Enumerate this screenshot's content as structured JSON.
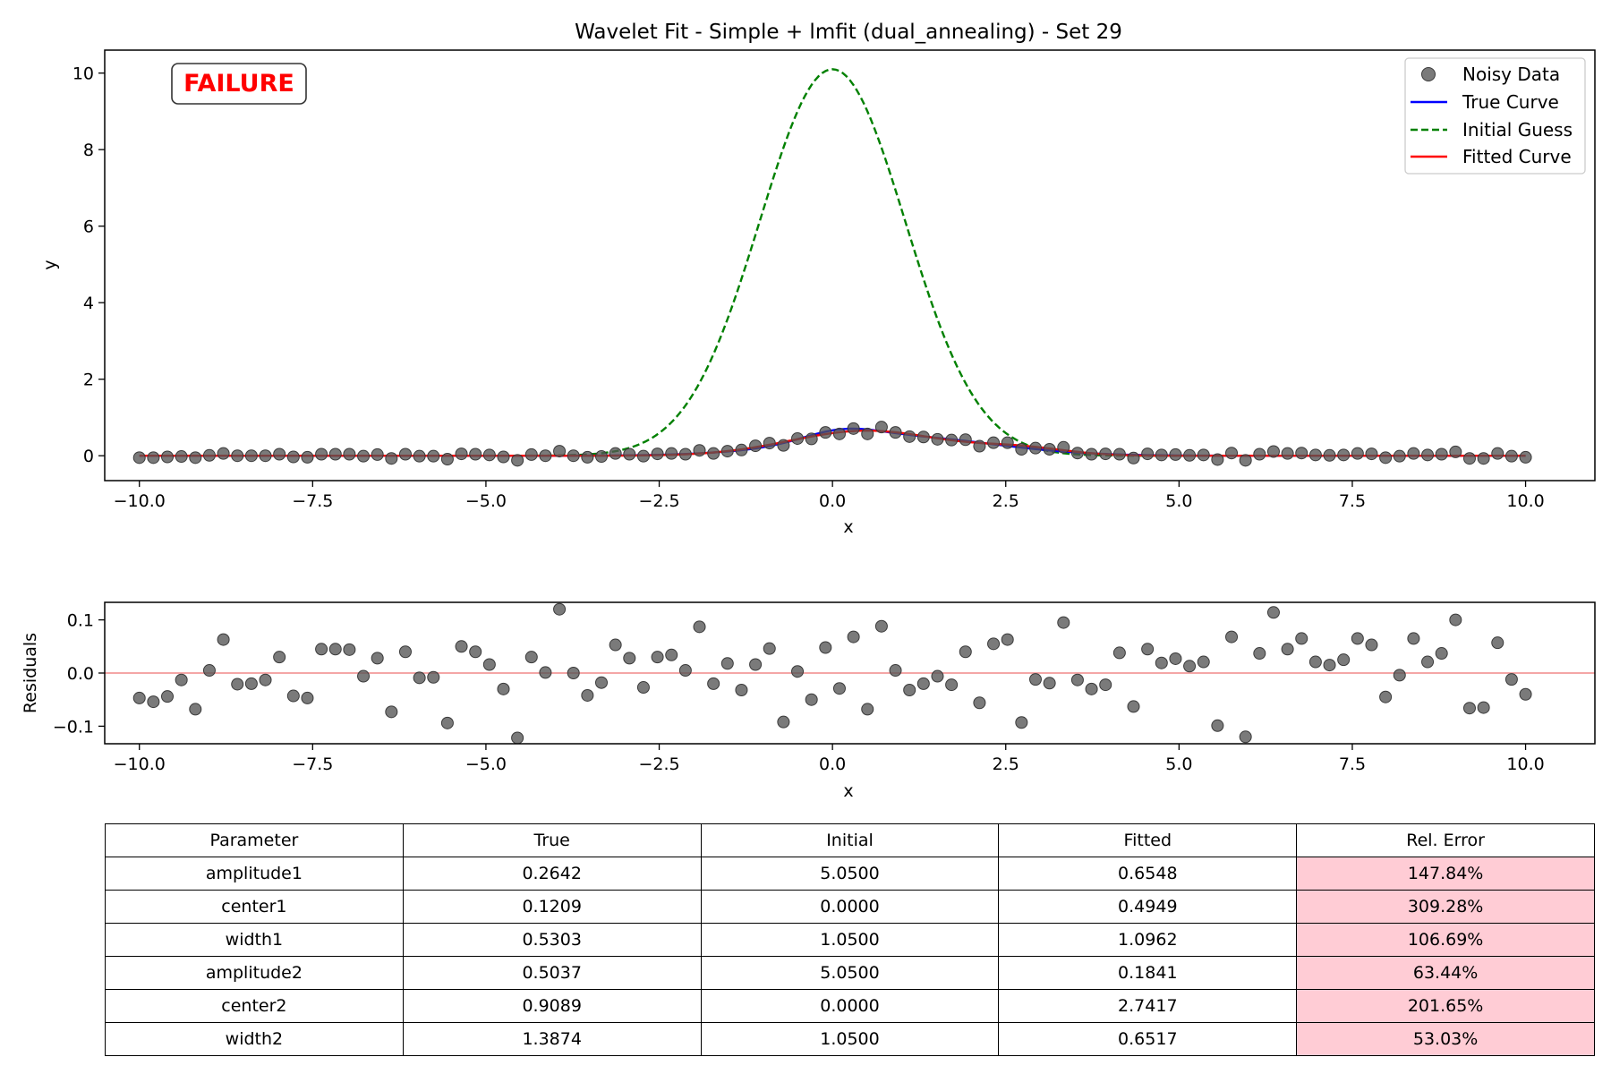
{
  "chart_data": [
    {
      "type": "line",
      "title": "Wavelet Fit - Simple + lmfit (dual_annealing) - Set 29",
      "xlabel": "x",
      "ylabel": "y",
      "xlim": [
        -10.5,
        11.0
      ],
      "ylim": [
        -0.65,
        10.6
      ],
      "xticks": [
        -10.0,
        -7.5,
        -5.0,
        -2.5,
        0.0,
        2.5,
        5.0,
        7.5,
        10.0
      ],
      "xtick_labels": [
        "−10.0",
        "−7.5",
        "−5.0",
        "−2.5",
        "0.0",
        "2.5",
        "5.0",
        "7.5",
        "10.0"
      ],
      "yticks": [
        0,
        2,
        4,
        6,
        8,
        10
      ],
      "ytick_labels": [
        "0",
        "2",
        "4",
        "6",
        "8",
        "10"
      ],
      "grid": false,
      "legend_position": "top-right",
      "annotation": {
        "text": "FAILURE",
        "color": "#ff0000"
      },
      "series": [
        {
          "name": "Noisy Data",
          "kind": "scatter",
          "color": "#555555",
          "x_range": [
            -10,
            10
          ],
          "n_points": 100,
          "y": [
            -0.05,
            -0.05,
            -0.03,
            -0.02,
            -0.05,
            0.01,
            0.06,
            0.0,
            0.0,
            0.0,
            0.04,
            -0.03,
            -0.04,
            0.04,
            0.04,
            0.04,
            -0.01,
            0.03,
            -0.07,
            0.04,
            -0.01,
            -0.01,
            -0.09,
            0.05,
            0.04,
            0.02,
            -0.03,
            -0.12,
            0.03,
            0.0,
            0.12,
            0.0,
            -0.04,
            -0.02,
            0.06,
            0.04,
            -0.01,
            0.05,
            0.06,
            0.04,
            0.14,
            0.06,
            0.12,
            0.15,
            0.26,
            0.33,
            0.27,
            0.45,
            0.44,
            0.61,
            0.57,
            0.71,
            0.57,
            0.75,
            0.61,
            0.5,
            0.49,
            0.43,
            0.41,
            0.42,
            0.25,
            0.34,
            0.34,
            0.17,
            0.2,
            0.17,
            0.22,
            0.07,
            0.04,
            0.05,
            0.04,
            -0.06,
            0.05,
            0.02,
            0.03,
            0.01,
            0.02,
            -0.1,
            0.07,
            -0.12,
            0.04,
            0.11,
            0.06,
            0.07,
            0.02,
            0.01,
            0.02,
            0.06,
            0.05,
            -0.05,
            -0.01,
            0.06,
            0.02,
            0.04,
            0.1,
            -0.07,
            -0.07,
            0.06,
            -0.01,
            -0.04
          ]
        },
        {
          "name": "True Curve",
          "kind": "line",
          "color": "#0000ff",
          "style": "solid",
          "params": {
            "amplitude1": 0.2642,
            "center1": 0.1209,
            "width1": 0.5303,
            "amplitude2": 0.5037,
            "center2": 0.9089,
            "width2": 1.3874
          }
        },
        {
          "name": "Initial Guess",
          "kind": "line",
          "color": "#008000",
          "style": "dashed",
          "params": {
            "amplitude1": 5.05,
            "center1": 0.0,
            "width1": 1.05,
            "amplitude2": 5.05,
            "center2": 0.0,
            "width2": 1.05
          }
        },
        {
          "name": "Fitted Curve",
          "kind": "line",
          "color": "#ff0000",
          "style": "solid",
          "params": {
            "amplitude1": 0.6548,
            "center1": 0.4949,
            "width1": 1.0962,
            "amplitude2": 0.1841,
            "center2": 2.7417,
            "width2": 0.6517
          }
        }
      ]
    },
    {
      "type": "scatter",
      "title": "",
      "xlabel": "x",
      "ylabel": "Residuals",
      "xlim": [
        -10.5,
        11.0
      ],
      "ylim": [
        -0.133,
        0.133
      ],
      "xticks": [
        -10.0,
        -7.5,
        -5.0,
        -2.5,
        0.0,
        2.5,
        5.0,
        7.5,
        10.0
      ],
      "xtick_labels": [
        "−10.0",
        "−7.5",
        "−5.0",
        "−2.5",
        "0.0",
        "2.5",
        "5.0",
        "7.5",
        "10.0"
      ],
      "yticks": [
        -0.1,
        0.0,
        0.1
      ],
      "ytick_labels": [
        "−0.1",
        "0.0",
        "0.1"
      ],
      "zero_line_color": "#f4a6a6",
      "series": [
        {
          "name": "Residuals",
          "color": "#555555",
          "x_range": [
            -10,
            10
          ],
          "n_points": 100,
          "y": [
            -0.047,
            -0.054,
            -0.044,
            -0.013,
            -0.068,
            0.005,
            0.063,
            -0.021,
            -0.02,
            -0.013,
            0.03,
            -0.043,
            -0.047,
            0.045,
            0.045,
            0.044,
            -0.006,
            0.028,
            -0.073,
            0.04,
            -0.009,
            -0.008,
            -0.094,
            0.05,
            0.04,
            0.016,
            -0.03,
            -0.122,
            0.03,
            0.001,
            0.12,
            0.0,
            -0.042,
            -0.018,
            0.053,
            0.028,
            -0.027,
            0.03,
            0.034,
            0.005,
            0.087,
            -0.02,
            0.018,
            -0.032,
            0.016,
            0.046,
            -0.092,
            0.003,
            -0.05,
            0.048,
            -0.029,
            0.068,
            -0.068,
            0.088,
            0.005,
            -0.032,
            -0.02,
            -0.006,
            -0.022,
            0.04,
            -0.056,
            0.055,
            0.063,
            -0.093,
            -0.012,
            -0.019,
            0.095,
            -0.013,
            -0.03,
            -0.022,
            0.038,
            -0.063,
            0.045,
            0.019,
            0.027,
            0.013,
            0.021,
            -0.099,
            0.068,
            -0.12,
            0.037,
            0.114,
            0.045,
            0.065,
            0.021,
            0.015,
            0.025,
            0.065,
            0.053,
            -0.045,
            -0.004,
            0.065,
            0.021,
            0.037,
            0.1,
            -0.066,
            -0.065,
            0.057,
            -0.012,
            -0.04
          ]
        }
      ]
    }
  ],
  "table": {
    "headers": [
      "Parameter",
      "True",
      "Initial",
      "Fitted",
      "Rel. Error"
    ],
    "rows": [
      [
        "amplitude1",
        "0.2642",
        "5.0500",
        "0.6548",
        "147.84%"
      ],
      [
        "center1",
        "0.1209",
        "0.0000",
        "0.4949",
        "309.28%"
      ],
      [
        "width1",
        "0.5303",
        "1.0500",
        "1.0962",
        "106.69%"
      ],
      [
        "amplitude2",
        "0.5037",
        "5.0500",
        "0.1841",
        "63.44%"
      ],
      [
        "center2",
        "0.9089",
        "0.0000",
        "2.7417",
        "201.65%"
      ],
      [
        "width2",
        "1.3874",
        "1.0500",
        "0.6517",
        "53.03%"
      ]
    ],
    "error_color": "#ffccd5"
  }
}
